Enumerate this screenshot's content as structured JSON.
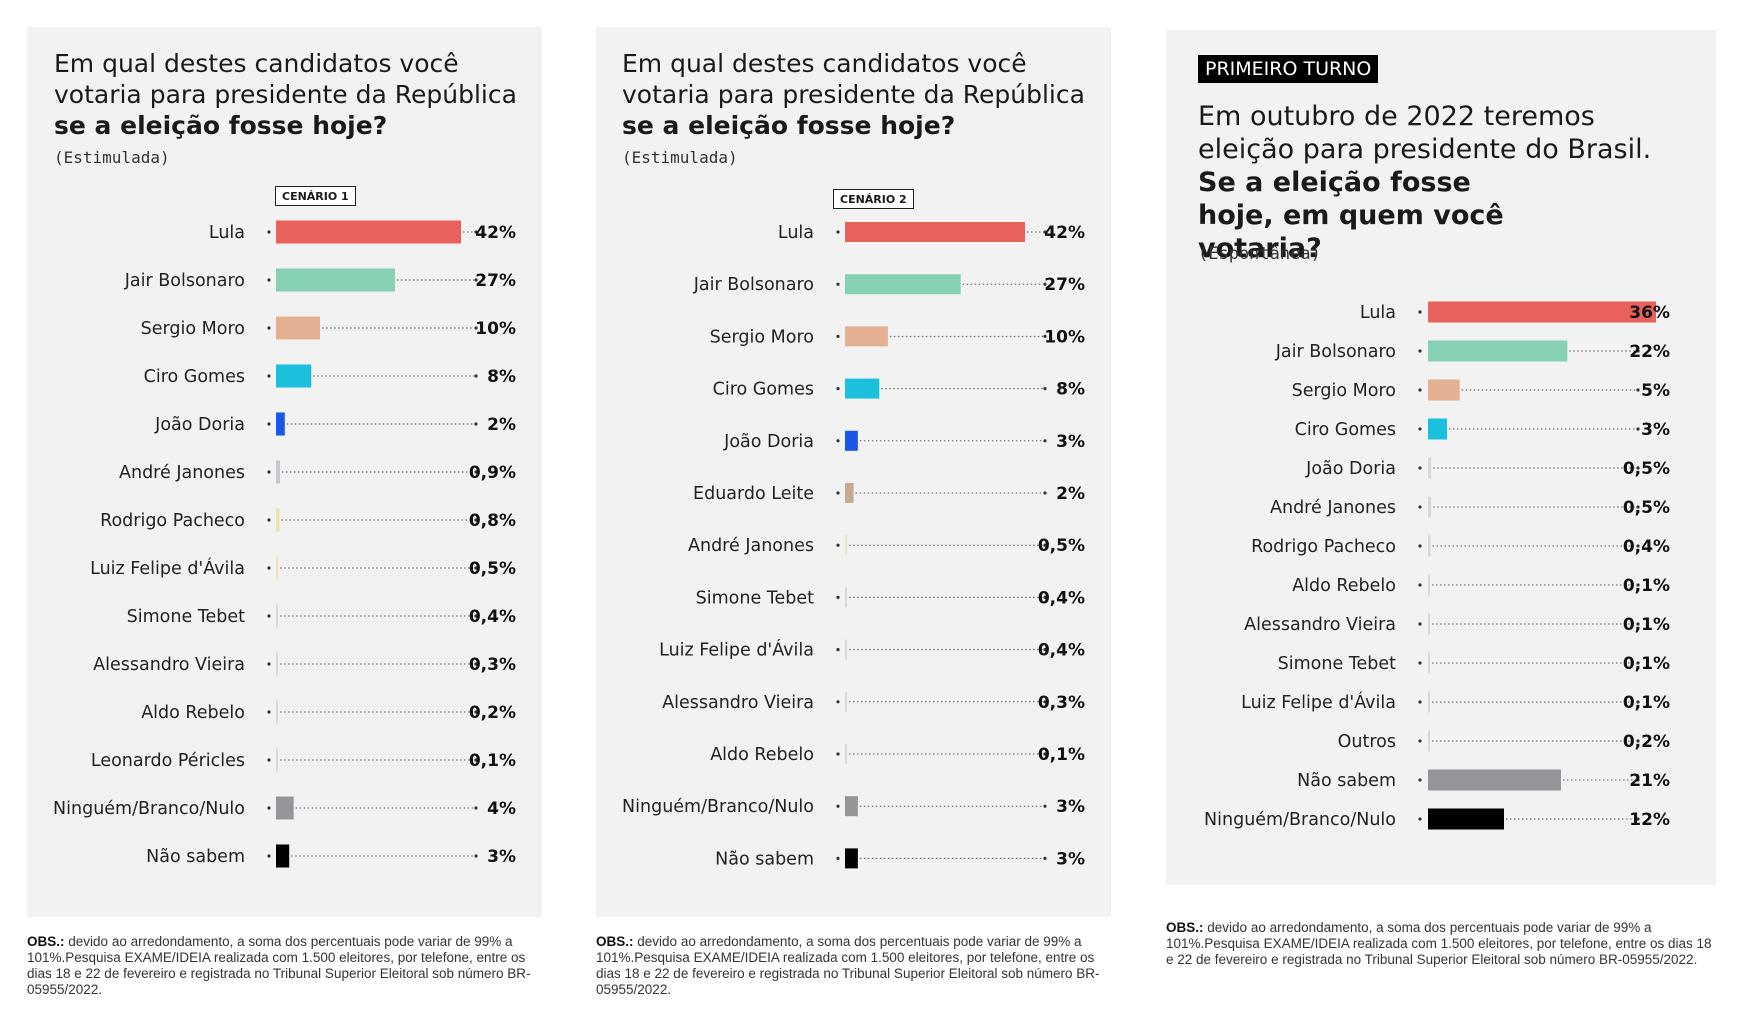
{
  "chart_data": [
    {
      "type": "bar",
      "title": "Em qual destes candidatos você votaria para presidente da República",
      "title_bold": "se a eleição fosse hoje?",
      "subtitle": "(Estimulada)",
      "scenario": "CENÁRIO 1",
      "xlim": [
        0,
        42
      ],
      "categories": [
        "Lula",
        "Jair Bolsonaro",
        "Sergio Moro",
        "Ciro Gomes",
        "João Doria",
        "André Janones",
        "Rodrigo Pacheco",
        "Luiz Felipe d'Ávila",
        "Simone Tebet",
        "Alessandro Vieira",
        "Aldo Rebelo",
        "Leonardo Péricles",
        "Ninguém/Branco/Nulo",
        "Não sabem"
      ],
      "values": [
        42,
        27,
        10,
        8,
        2,
        0.9,
        0.8,
        0.5,
        0.4,
        0.3,
        0.2,
        0.1,
        4,
        3
      ],
      "labels": [
        "42%",
        "27%",
        "10%",
        "8%",
        "2%",
        "0,9%",
        "0,8%",
        "0,5%",
        "0,4%",
        "0,3%",
        "0,2%",
        "0,1%",
        "4%",
        "3%"
      ],
      "colors": [
        "#e8615c",
        "#86d0b4",
        "#e3b092",
        "#1bc0dc",
        "#1a57e8",
        "#c2c9d1",
        "#e8e3b5",
        "#f2dfb4",
        "#d8d8d8",
        "#d8d8d8",
        "#d8d8d8",
        "#d8d8d8",
        "#939598",
        "#000000"
      ],
      "obs_label": "OBS.:",
      "obs_text": "devido ao arredondamento, a soma dos percentuais pode variar de 99% a 101%.Pesquisa EXAME/IDEIA realizada com 1.500 eleitores, por telefone, entre os dias 18 e 22 de fevereiro e registrada no Tribunal Superior Eleitoral sob número BR-05955/2022."
    },
    {
      "type": "bar",
      "title": "Em qual destes candidatos você votaria para presidente da República",
      "title_bold": "se a eleição fosse hoje?",
      "subtitle": "(Estimulada)",
      "scenario": "CENÁRIO 2",
      "xlim": [
        0,
        42
      ],
      "categories": [
        "Lula",
        "Jair Bolsonaro",
        "Sergio Moro",
        "Ciro Gomes",
        "João Doria",
        "Eduardo Leite",
        "André Janones",
        "Simone Tebet",
        "Luiz Felipe d'Ávila",
        "Alessandro Vieira",
        "Aldo Rebelo",
        "Ninguém/Branco/Nulo",
        "Não sabem"
      ],
      "values": [
        42,
        27,
        10,
        8,
        3,
        2,
        0.5,
        0.4,
        0.4,
        0.3,
        0.1,
        3,
        3
      ],
      "labels": [
        "42%",
        "27%",
        "10%",
        "8%",
        "3%",
        "2%",
        "0,5%",
        "0,4%",
        "0,4%",
        "0,3%",
        "0,1%",
        "3%",
        "3%"
      ],
      "colors": [
        "#e8615c",
        "#86d0b4",
        "#e3b092",
        "#1bc0dc",
        "#1a57e8",
        "#c7ab91",
        "#eae6bd",
        "#d8d8d8",
        "#d8d8d8",
        "#d8d8d8",
        "#d8d8d8",
        "#939598",
        "#000000"
      ],
      "obs_label": "OBS.:",
      "obs_text": "devido ao arredondamento, a soma dos percentuais pode variar de 99% a 101%.Pesquisa EXAME/IDEIA realizada com 1.500 eleitores, por telefone, entre os dias 18 e 22 de fevereiro e registrada no Tribunal Superior Eleitoral sob número BR-05955/2022."
    },
    {
      "type": "bar",
      "badge": "PRIMEIRO TURNO",
      "title": "Em outubro de 2022 teremos eleição para presidente do Brasil.",
      "title_bold": "Se a eleição fosse hoje, em quem você votaria?",
      "subtitle": "(Espontânea)",
      "xlim": [
        0,
        36
      ],
      "categories": [
        "Lula",
        "Jair Bolsonaro",
        "Sergio Moro",
        "Ciro Gomes",
        "João Doria",
        "André Janones",
        "Rodrigo Pacheco",
        "Aldo Rebelo",
        "Alessandro Vieira",
        "Simone Tebet",
        "Luiz Felipe d'Ávila",
        "Outros",
        "Não sabem",
        "Ninguém/Branco/Nulo"
      ],
      "values": [
        36,
        22,
        5,
        3,
        0.5,
        0.5,
        0.4,
        0.1,
        0.1,
        0.1,
        0.1,
        0.2,
        21,
        12
      ],
      "labels": [
        "36%",
        "22%",
        "5%",
        "3%",
        "0,5%",
        "0,5%",
        "0,4%",
        "0,1%",
        "0,1%",
        "0,1%",
        "0,1%",
        "0,2%",
        "21%",
        "12%"
      ],
      "colors": [
        "#e8615c",
        "#86d0b4",
        "#e3b092",
        "#1bc0dc",
        "#d8d8d8",
        "#d8d8d8",
        "#d8d8d8",
        "#d8d8d8",
        "#d8d8d8",
        "#d8d8d8",
        "#d8d8d8",
        "#d8d8d8",
        "#939598",
        "#000000"
      ],
      "obs_label": "OBS.:",
      "obs_text": "devido ao arredondamento, a soma dos percentuais pode variar de 99% a 101%.Pesquisa EXAME/IDEIA realizada com 1.500 eleitores, por telefone, entre os dias 18 e 22 de fevereiro e registrada no Tribunal Superior Eleitoral sob número BR-05955/2022."
    }
  ]
}
